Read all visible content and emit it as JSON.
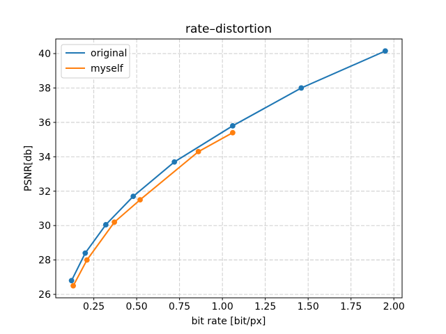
{
  "chart_data": {
    "type": "line",
    "title": "rate–distortion",
    "xlabel": "bit rate [bit/px]",
    "ylabel": "PSNR[db]",
    "xlim": [
      0.028,
      2.048
    ],
    "ylim": [
      25.8,
      40.85
    ],
    "xticks": {
      "values": [
        0.25,
        0.5,
        0.75,
        1.0,
        1.25,
        1.5,
        1.75,
        2.0
      ],
      "labels": [
        "0.25",
        "0.50",
        "0.75",
        "1.00",
        "1.25",
        "1.50",
        "1.75",
        "2.00"
      ]
    },
    "yticks": {
      "values": [
        26,
        28,
        30,
        32,
        34,
        36,
        38,
        40
      ],
      "labels": [
        "26",
        "28",
        "30",
        "32",
        "34",
        "36",
        "38",
        "40"
      ]
    },
    "grid": {
      "on": true,
      "linestyle": "dashed",
      "color": "#c8c8c8"
    },
    "legend": {
      "position": "upper-left",
      "entries": [
        "original",
        "myself"
      ]
    },
    "series": [
      {
        "name": "original",
        "color": "#1f77b4",
        "marker": "circle",
        "points": [
          [
            0.12,
            26.8
          ],
          [
            0.2,
            28.4
          ],
          [
            0.32,
            30.05
          ],
          [
            0.48,
            31.7
          ],
          [
            0.72,
            33.7
          ],
          [
            1.06,
            35.8
          ],
          [
            1.46,
            38.0
          ],
          [
            1.95,
            40.15
          ]
        ]
      },
      {
        "name": "myself",
        "color": "#ff7f0e",
        "marker": "circle",
        "points": [
          [
            0.13,
            26.5
          ],
          [
            0.21,
            28.0
          ],
          [
            0.37,
            30.2
          ],
          [
            0.52,
            31.5
          ],
          [
            0.86,
            34.3
          ],
          [
            1.06,
            35.4
          ]
        ]
      }
    ]
  }
}
